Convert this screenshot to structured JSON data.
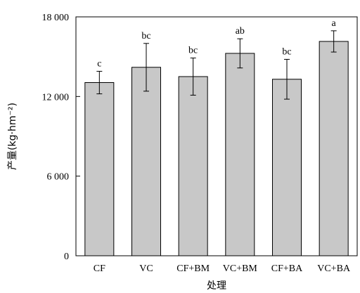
{
  "chart_data": {
    "type": "bar",
    "categories": [
      "CF",
      "VC",
      "CF+BM",
      "VC+BM",
      "CF+BA",
      "VC+BA"
    ],
    "values": [
      13050,
      14200,
      13500,
      15250,
      13300,
      16150
    ],
    "errors": [
      850,
      1800,
      1400,
      1100,
      1500,
      800
    ],
    "significance_labels": [
      "c",
      "bc",
      "bc",
      "ab",
      "bc",
      "a"
    ],
    "xlabel": "处理",
    "ylabel": "产量(kg·hm⁻²)",
    "ylim": [
      0,
      18000
    ],
    "yticks": [
      0,
      6000,
      12000,
      18000
    ],
    "ytick_labels": [
      "0",
      "6 000",
      "12 000",
      "18 000"
    ],
    "bar_color": "#c8c8c8",
    "grid": false
  }
}
